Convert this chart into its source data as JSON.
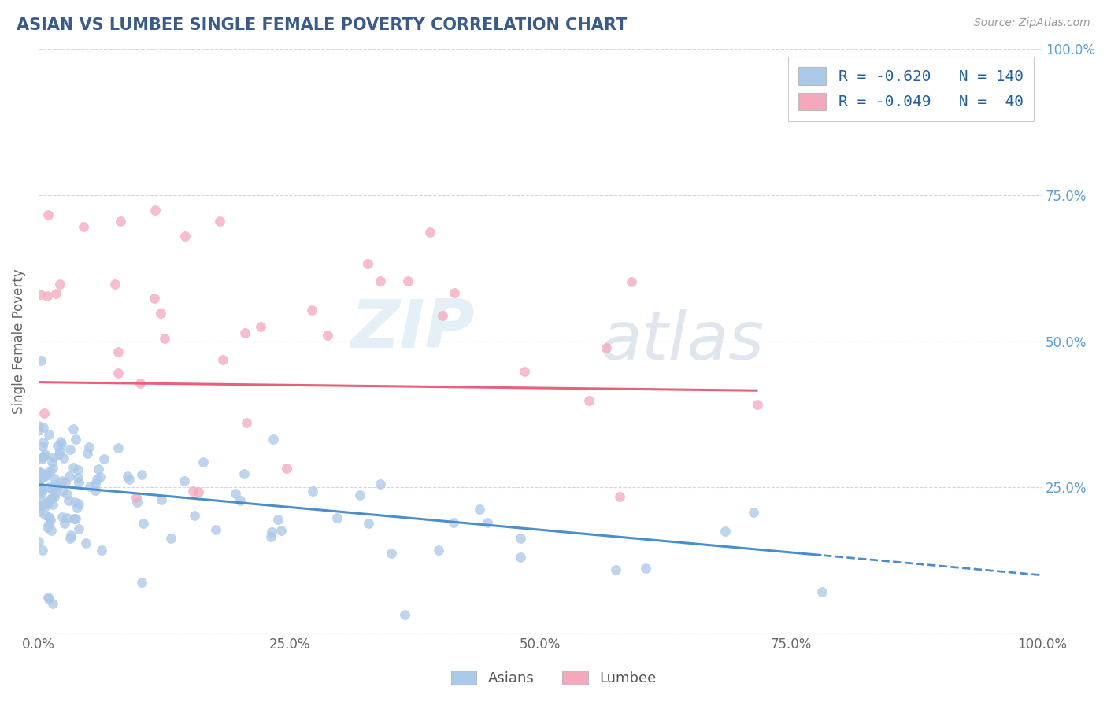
{
  "title": "ASIAN VS LUMBEE SINGLE FEMALE POVERTY CORRELATION CHART",
  "source": "Source: ZipAtlas.com",
  "xlabel": "",
  "ylabel": "Single Female Poverty",
  "asian_R": -0.62,
  "asian_N": 140,
  "lumbee_R": -0.049,
  "lumbee_N": 40,
  "asian_color": "#aac8e8",
  "lumbee_color": "#f4a8bc",
  "asian_line_color": "#4a8fcc",
  "lumbee_line_color": "#e8607a",
  "title_color": "#3a5a8a",
  "source_color": "#999999",
  "background_color": "#ffffff",
  "grid_color": "#cccccc",
  "xlim": [
    0.0,
    1.0
  ],
  "ylim": [
    0.0,
    1.0
  ],
  "xticks": [
    0.0,
    0.25,
    0.5,
    0.75,
    1.0
  ],
  "yticks": [
    0.0,
    0.25,
    0.5,
    0.75,
    1.0
  ],
  "xticklabels": [
    "0.0%",
    "25.0%",
    "50.0%",
    "75.0%",
    "100.0%"
  ],
  "yticklabels": [
    "",
    "25.0%",
    "50.0%",
    "75.0%",
    "100.0%"
  ],
  "watermark_zip": "ZIP",
  "watermark_atlas": "atlas",
  "asian_line_intercept": 0.255,
  "asian_line_slope": -0.155,
  "lumbee_line_intercept": 0.43,
  "lumbee_line_slope": -0.02
}
